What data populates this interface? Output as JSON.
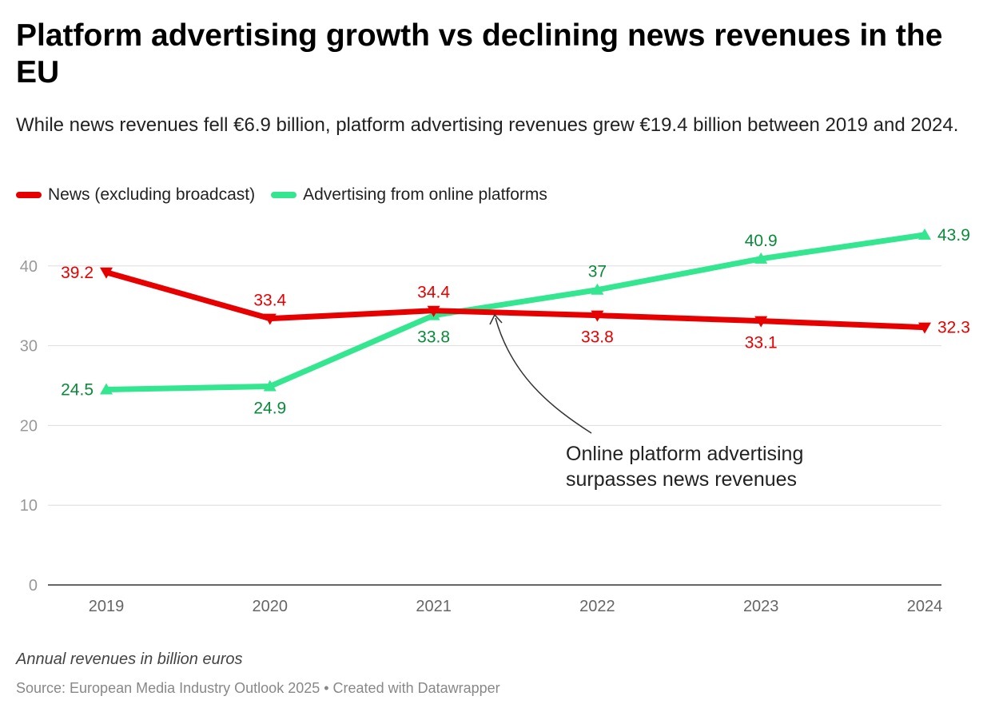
{
  "title": "Platform advertising growth vs declining news revenues in the EU",
  "subtitle": "While news revenues fell €6.9 billion, platform advertising revenues grew €19.4 billion between 2019 and 2024.",
  "note": "Annual revenues in billion euros",
  "source": "Source: European Media Industry Outlook 2025 • Created with Datawrapper",
  "chart_data": {
    "type": "line",
    "title": "Platform advertising growth vs declining news revenues in the EU",
    "xlabel": "",
    "ylabel": "",
    "x": [
      "2019",
      "2020",
      "2021",
      "2022",
      "2023",
      "2024"
    ],
    "ylim": [
      0,
      45
    ],
    "yticks": [
      "0",
      "10",
      "20",
      "30",
      "40"
    ],
    "grid": true,
    "legend_position": "top-left",
    "series": [
      {
        "name": "News (excluding broadcast)",
        "color": "#e60000",
        "marker": "triangle-down",
        "values": [
          39.2,
          33.4,
          34.4,
          33.8,
          33.1,
          32.3
        ],
        "labels": [
          "39.2",
          "33.4",
          "34.4",
          "33.8",
          "33.1",
          "32.3"
        ],
        "label_side": [
          "left",
          "above",
          "above",
          "below",
          "below",
          "right"
        ]
      },
      {
        "name": "Advertising from online platforms",
        "color": "#33e68f",
        "label_color": "#0a8a3a",
        "marker": "triangle-up",
        "values": [
          24.5,
          24.9,
          33.8,
          37.0,
          40.9,
          43.9
        ],
        "labels": [
          "24.5",
          "24.9",
          "33.8",
          "37",
          "40.9",
          "43.9"
        ],
        "label_side": [
          "left",
          "below",
          "below",
          "above",
          "above",
          "right"
        ]
      }
    ],
    "annotation": {
      "text_line1": "Online platform advertising",
      "text_line2": "surpasses news revenues",
      "x": "2021",
      "y": 34.4
    }
  }
}
